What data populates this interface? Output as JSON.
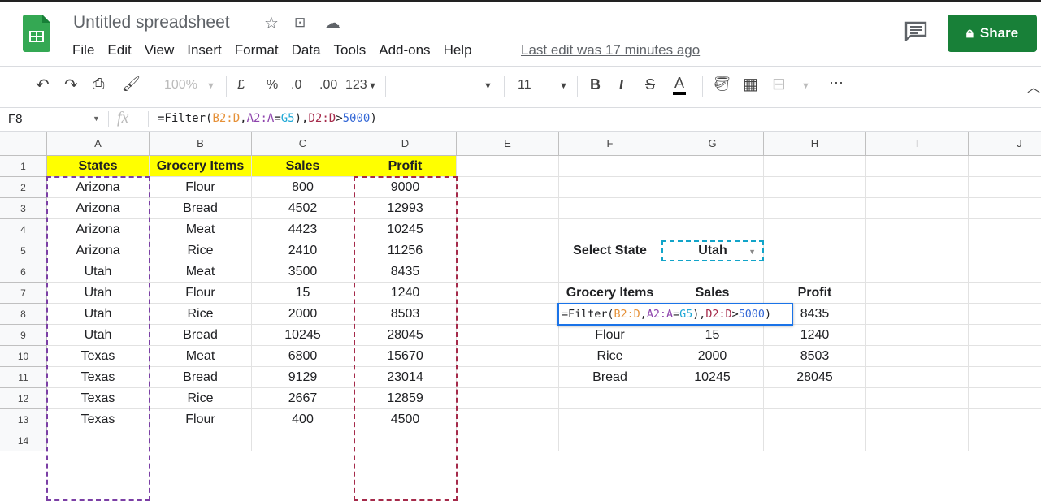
{
  "app": {
    "title": "Untitled spreadsheet",
    "last_edit": "Last edit was 17 minutes ago",
    "share_label": "Share",
    "brand_color": "#188038"
  },
  "menu": [
    "File",
    "Edit",
    "View",
    "Insert",
    "Format",
    "Data",
    "Tools",
    "Add-ons",
    "Help"
  ],
  "toolbar": {
    "zoom": "100%",
    "currency": "£",
    "percent": "%",
    "dec_less": ".0",
    "dec_more": ".00",
    "format": "123",
    "font_size": "11",
    "bold": "B",
    "italic": "I",
    "strike": "S",
    "text_color": "A"
  },
  "formula_bar": {
    "cell_ref": "F8",
    "fx": "fx",
    "formula": "=Filter(B2:D,A2:A=G5),D2:D>5000)"
  },
  "columns": [
    "A",
    "B",
    "C",
    "D",
    "E",
    "F",
    "G",
    "H",
    "I",
    "J"
  ],
  "rows": [
    "1",
    "2",
    "3",
    "4",
    "5",
    "6",
    "7",
    "8",
    "9",
    "10",
    "11",
    "12",
    "13",
    "14"
  ],
  "table": {
    "headers": [
      "States",
      "Grocery Items",
      "Sales",
      "Profit"
    ],
    "rows": [
      [
        "Arizona",
        "Flour",
        "800",
        "9000"
      ],
      [
        "Arizona",
        "Bread",
        "4502",
        "12993"
      ],
      [
        "Arizona",
        "Meat",
        "4423",
        "10245"
      ],
      [
        "Arizona",
        "Rice",
        "2410",
        "11256"
      ],
      [
        "Utah",
        "Meat",
        "3500",
        "8435"
      ],
      [
        "Utah",
        "Flour",
        "15",
        "1240"
      ],
      [
        "Utah",
        "Rice",
        "2000",
        "8503"
      ],
      [
        "Utah",
        "Bread",
        "10245",
        "28045"
      ],
      [
        "Texas",
        "Meat",
        "6800",
        "15670"
      ],
      [
        "Texas",
        "Bread",
        "9129",
        "23014"
      ],
      [
        "Texas",
        "Rice",
        "2667",
        "12859"
      ],
      [
        "Texas",
        "Flour",
        "400",
        "4500"
      ]
    ]
  },
  "selector": {
    "label": "Select State",
    "value": "Utah"
  },
  "result": {
    "headers": [
      "Grocery Items",
      "Sales",
      "Profit"
    ],
    "rows": [
      [
        "",
        "",
        "8435"
      ],
      [
        "Flour",
        "15",
        "1240"
      ],
      [
        "Rice",
        "2000",
        "8503"
      ],
      [
        "Bread",
        "10245",
        "28045"
      ]
    ]
  }
}
